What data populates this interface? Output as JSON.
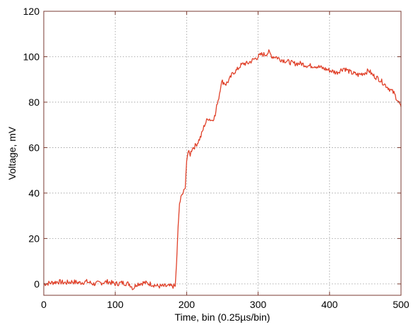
{
  "chart_data": {
    "type": "line",
    "title": "",
    "xlabel": "Time, bin (0.25µs/bin)",
    "ylabel": "Voltage, mV",
    "xlim": [
      0,
      500
    ],
    "ylim": [
      -5,
      120
    ],
    "xticks": [
      "0",
      "100",
      "200",
      "300",
      "400",
      "500"
    ],
    "yticks": [
      "0",
      "20",
      "40",
      "60",
      "80",
      "100",
      "120"
    ],
    "grid": true,
    "colors": {
      "series": "#e0412a",
      "frame": "#7a3a30",
      "grid": "#9a9a9a"
    },
    "series": [
      {
        "x": [
          0,
          10,
          20,
          30,
          40,
          50,
          60,
          70,
          80,
          90,
          100,
          110,
          120,
          125,
          130,
          140,
          150,
          160,
          170,
          180,
          184,
          186,
          188,
          190,
          192,
          195,
          198,
          200,
          202,
          205,
          208,
          210,
          215,
          220,
          225,
          230,
          235,
          240,
          243,
          245,
          248,
          250,
          255,
          260,
          265,
          270,
          275,
          280,
          285,
          290,
          295,
          300,
          305,
          310,
          315,
          320,
          325,
          330,
          340,
          350,
          360,
          370,
          380,
          390,
          400,
          410,
          420,
          425,
          430,
          440,
          450,
          455,
          460,
          470,
          480,
          490,
          495,
          500
        ],
        "y": [
          0,
          0.5,
          1,
          0.5,
          1,
          0.5,
          1,
          0,
          0.5,
          1,
          0,
          0.5,
          0,
          -2,
          0,
          0.5,
          0,
          -1,
          -1,
          -1,
          -1,
          10,
          25,
          35,
          38,
          40,
          42,
          55,
          58,
          57,
          60,
          60,
          62,
          65,
          70,
          73,
          72,
          74,
          80,
          82,
          88,
          89,
          88,
          90,
          93,
          94,
          96,
          97,
          97,
          98,
          99,
          100,
          101,
          101,
          102,
          100,
          100,
          99,
          98,
          97,
          97,
          96,
          96,
          95,
          94,
          93,
          95,
          94,
          93,
          92,
          93,
          94,
          92,
          90,
          87,
          84,
          81,
          78
        ]
      }
    ]
  }
}
